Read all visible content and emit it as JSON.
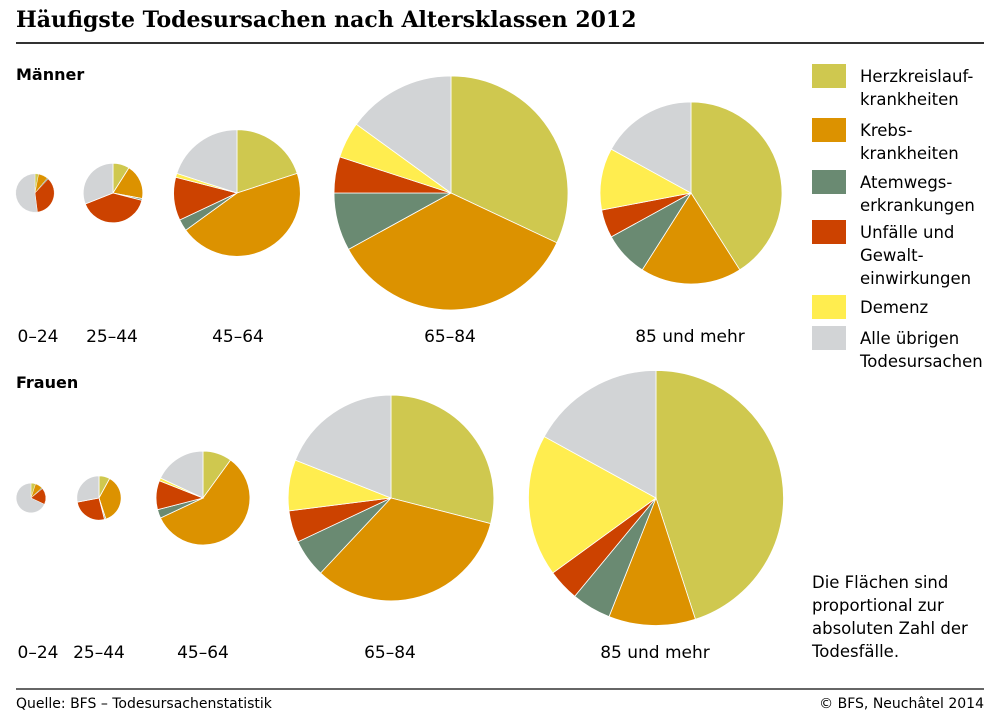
{
  "chart_data": {
    "type": "pie",
    "title": "Häufigste Todesursachen nach Altersklassen 2012",
    "legend": {
      "placement": "right",
      "entries": [
        {
          "key": "herz",
          "lines": [
            "Herzkreislauf-",
            "krankheiten"
          ],
          "color": "#cfc84f"
        },
        {
          "key": "krebs",
          "lines": [
            "Krebs-",
            "krankheiten"
          ],
          "color": "#dc9200"
        },
        {
          "key": "atemwege",
          "lines": [
            "Atemwegs-",
            "erkrankungen"
          ],
          "color": "#6a8a72"
        },
        {
          "key": "unfaelle",
          "lines": [
            "Unfälle und",
            "Gewalt-",
            "einwirkungen"
          ],
          "color": "#cc4200"
        },
        {
          "key": "demenz",
          "lines": [
            "Demenz"
          ],
          "color": "#ffed4f"
        },
        {
          "key": "uebrige",
          "lines": [
            "Alle übrigen",
            "Todesursachen"
          ],
          "color": "#d2d4d6"
        }
      ]
    },
    "groups": [
      {
        "name": "Männer",
        "pies": [
          {
            "age": "0–24",
            "relative_size": 0.027,
            "shares": [
              3,
              8,
              1,
              36,
              0,
              52
            ]
          },
          {
            "age": "25–44",
            "relative_size": 0.065,
            "shares": [
              9,
              19,
              1,
              40,
              0,
              31
            ]
          },
          {
            "age": "45–64",
            "relative_size": 0.293,
            "shares": [
              20,
              45,
              3,
              11,
              1,
              20
            ]
          },
          {
            "age": "65–84",
            "relative_size": 1.0,
            "shares": [
              32,
              35,
              8,
              5,
              5,
              15
            ]
          },
          {
            "age": "85 und mehr",
            "relative_size": 0.605,
            "shares": [
              41,
              18,
              8,
              5,
              11,
              17
            ]
          }
        ]
      },
      {
        "name": "Frauen",
        "pies": [
          {
            "age": "0–24",
            "relative_size": 0.016,
            "shares": [
              5,
              8,
              1,
              18,
              0,
              68
            ]
          },
          {
            "age": "25–44",
            "relative_size": 0.036,
            "shares": [
              8,
              37,
              1,
              26,
              0,
              28
            ]
          },
          {
            "age": "45–64",
            "relative_size": 0.161,
            "shares": [
              10,
              58,
              3,
              10,
              1,
              18
            ]
          },
          {
            "age": "65–84",
            "relative_size": 0.773,
            "shares": [
              29,
              33,
              6,
              5,
              8,
              19
            ]
          },
          {
            "age": "85 und mehr",
            "relative_size": 1.188,
            "shares": [
              45,
              11,
              5,
              4,
              18,
              17
            ]
          }
        ]
      }
    ],
    "annotation": [
      "Die Flächen sind",
      "proportional zur",
      "absoluten Zahl der",
      "Todesfälle."
    ]
  },
  "footer": {
    "source": "Quelle: BFS – Todesursachenstatistik",
    "copyright": "© BFS, Neuchâtel 2014"
  }
}
